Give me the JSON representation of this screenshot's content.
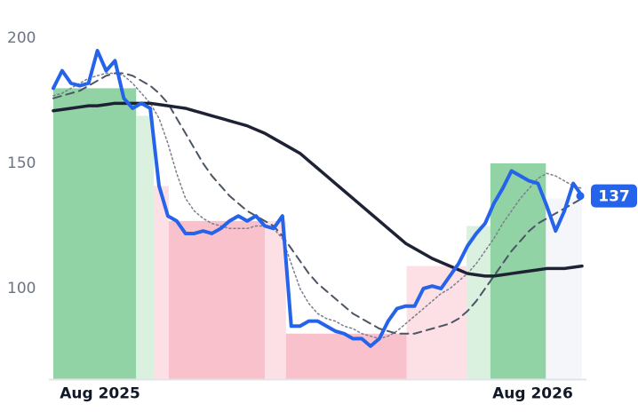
{
  "chart_data": {
    "type": "line",
    "xlim": [
      0,
      60
    ],
    "xticks": [
      {
        "value": 5.3,
        "label": "Aug 2025"
      },
      {
        "value": 54.4,
        "label": "Aug 2026"
      }
    ],
    "ylim": [
      64,
      205
    ],
    "yticks": [
      100,
      150,
      200
    ],
    "regions": [
      {
        "start": 0,
        "end": 9.4,
        "top": 180,
        "color": "#7fcb95"
      },
      {
        "start": 9.4,
        "end": 11.4,
        "top": 169,
        "color": "#d3eedb"
      },
      {
        "start": 11.4,
        "end": 13.1,
        "top": 141,
        "color": "#fcdbe1"
      },
      {
        "start": 13.1,
        "end": 24,
        "top": 127,
        "color": "#f7b6c2"
      },
      {
        "start": 24,
        "end": 26.4,
        "top": 127,
        "color": "#fcdbe1"
      },
      {
        "start": 26.4,
        "end": 40.1,
        "top": 82,
        "color": "#f7b6c2"
      },
      {
        "start": 40.1,
        "end": 46.9,
        "top": 109,
        "color": "#fcdbe1"
      },
      {
        "start": 46.9,
        "end": 49.6,
        "top": 125,
        "color": "#d3eedb"
      },
      {
        "start": 49.6,
        "end": 55.9,
        "top": 150,
        "color": "#7fcb95"
      },
      {
        "start": 55.9,
        "end": 60,
        "top": 136,
        "color": "#f3f4f8"
      }
    ],
    "series": [
      {
        "color": "#7a7f8c",
        "style": "dotted",
        "width": 1.5,
        "values": [
          177,
          178,
          180,
          182,
          184,
          185,
          186,
          186,
          185,
          182,
          178,
          174,
          168,
          158,
          146,
          136,
          131,
          128,
          126,
          125,
          124,
          124,
          124,
          125,
          125,
          124,
          120,
          110,
          100,
          94,
          90,
          88,
          87,
          85,
          84,
          82,
          81,
          80,
          81,
          83,
          86,
          89,
          92,
          95,
          98,
          100,
          103,
          106,
          110,
          115,
          120,
          126,
          131,
          136,
          140,
          144,
          146,
          145,
          143,
          141,
          140
        ]
      },
      {
        "color": "#4b5563",
        "style": "dashed",
        "width": 2,
        "values": [
          176,
          177,
          178,
          179,
          181,
          183,
          185,
          186,
          186,
          185,
          183,
          181,
          178,
          174,
          168,
          162,
          156,
          150,
          145,
          141,
          137,
          134,
          131,
          129,
          127,
          125,
          121,
          116,
          111,
          106,
          102,
          99,
          96,
          93,
          90,
          88,
          86,
          84,
          83,
          82,
          82,
          82,
          83,
          84,
          85,
          86,
          88,
          91,
          95,
          100,
          105,
          110,
          115,
          119,
          123,
          126,
          128,
          130,
          132,
          134,
          136
        ]
      },
      {
        "color": "#1e2235",
        "style": "solid",
        "width": 3.5,
        "values": [
          171,
          171.5,
          172,
          172.5,
          173,
          173,
          173.5,
          174,
          174,
          174,
          174,
          174,
          173.5,
          173,
          172.5,
          172,
          171,
          170,
          169,
          168,
          167,
          166,
          165,
          163.5,
          162,
          160,
          158,
          156,
          154,
          151,
          148,
          145,
          142,
          139,
          136,
          133,
          130,
          127,
          124,
          121,
          118,
          116,
          114,
          112,
          110.5,
          109,
          107.5,
          106,
          105.5,
          105,
          105,
          105.5,
          106,
          106.5,
          107,
          107.5,
          108,
          108,
          108,
          108.5,
          109
        ]
      },
      {
        "color": "#2563eb",
        "style": "solid",
        "width": 4,
        "values": [
          180,
          187,
          182,
          181,
          182,
          195,
          187,
          191,
          176,
          172,
          174,
          172,
          141,
          129,
          127,
          122,
          122,
          123,
          122,
          124,
          127,
          129,
          127,
          129,
          125,
          124,
          129,
          85,
          85,
          87,
          87,
          85,
          83,
          82,
          80,
          80,
          77,
          80,
          87,
          92,
          93,
          93,
          100,
          101,
          100,
          105,
          110,
          117,
          122,
          126,
          134,
          140,
          147,
          145,
          143,
          142,
          133,
          123,
          131,
          142,
          137
        ]
      }
    ]
  }
}
